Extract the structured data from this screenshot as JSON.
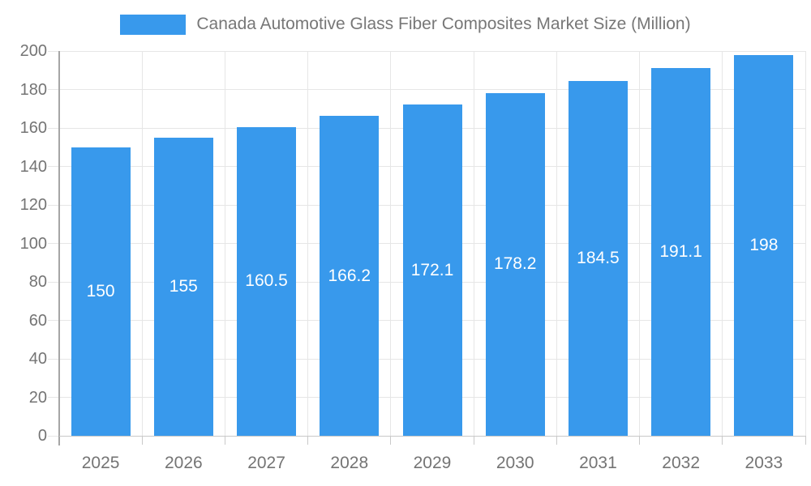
{
  "chart_data": {
    "type": "bar",
    "title": "Canada Automotive Glass Fiber Composites Market Size (Million)",
    "categories": [
      "2025",
      "2026",
      "2027",
      "2028",
      "2029",
      "2030",
      "2031",
      "2032",
      "2033"
    ],
    "values": [
      150,
      155,
      160.5,
      166.2,
      172.1,
      178.2,
      184.5,
      191.1,
      198
    ],
    "value_labels": [
      "150",
      "155",
      "160.5",
      "166.2",
      "172.1",
      "178.2",
      "184.5",
      "191.1",
      "198"
    ],
    "xlabel": "",
    "ylabel": "",
    "ylim": [
      0,
      200
    ],
    "ytick_step": 20,
    "ytick_labels": [
      "0",
      "20",
      "40",
      "60",
      "80",
      "100",
      "120",
      "140",
      "160",
      "180",
      "200"
    ],
    "grid": true,
    "bar_label_position": "middle",
    "legend_position": "top",
    "legend_entries": [
      "Canada Automotive Glass Fiber Composites Market Size (Million)"
    ],
    "colors": {
      "bar": "#3899EC",
      "bar_label_text": "#FFFFFF",
      "grid": "#E6E6E6",
      "y_axis_line": "#A6A6A6",
      "x_axis_line": "#C9C9C9",
      "tick_label_text": "#747474",
      "legend_text": "#777777",
      "background": "#FFFFFF"
    }
  }
}
